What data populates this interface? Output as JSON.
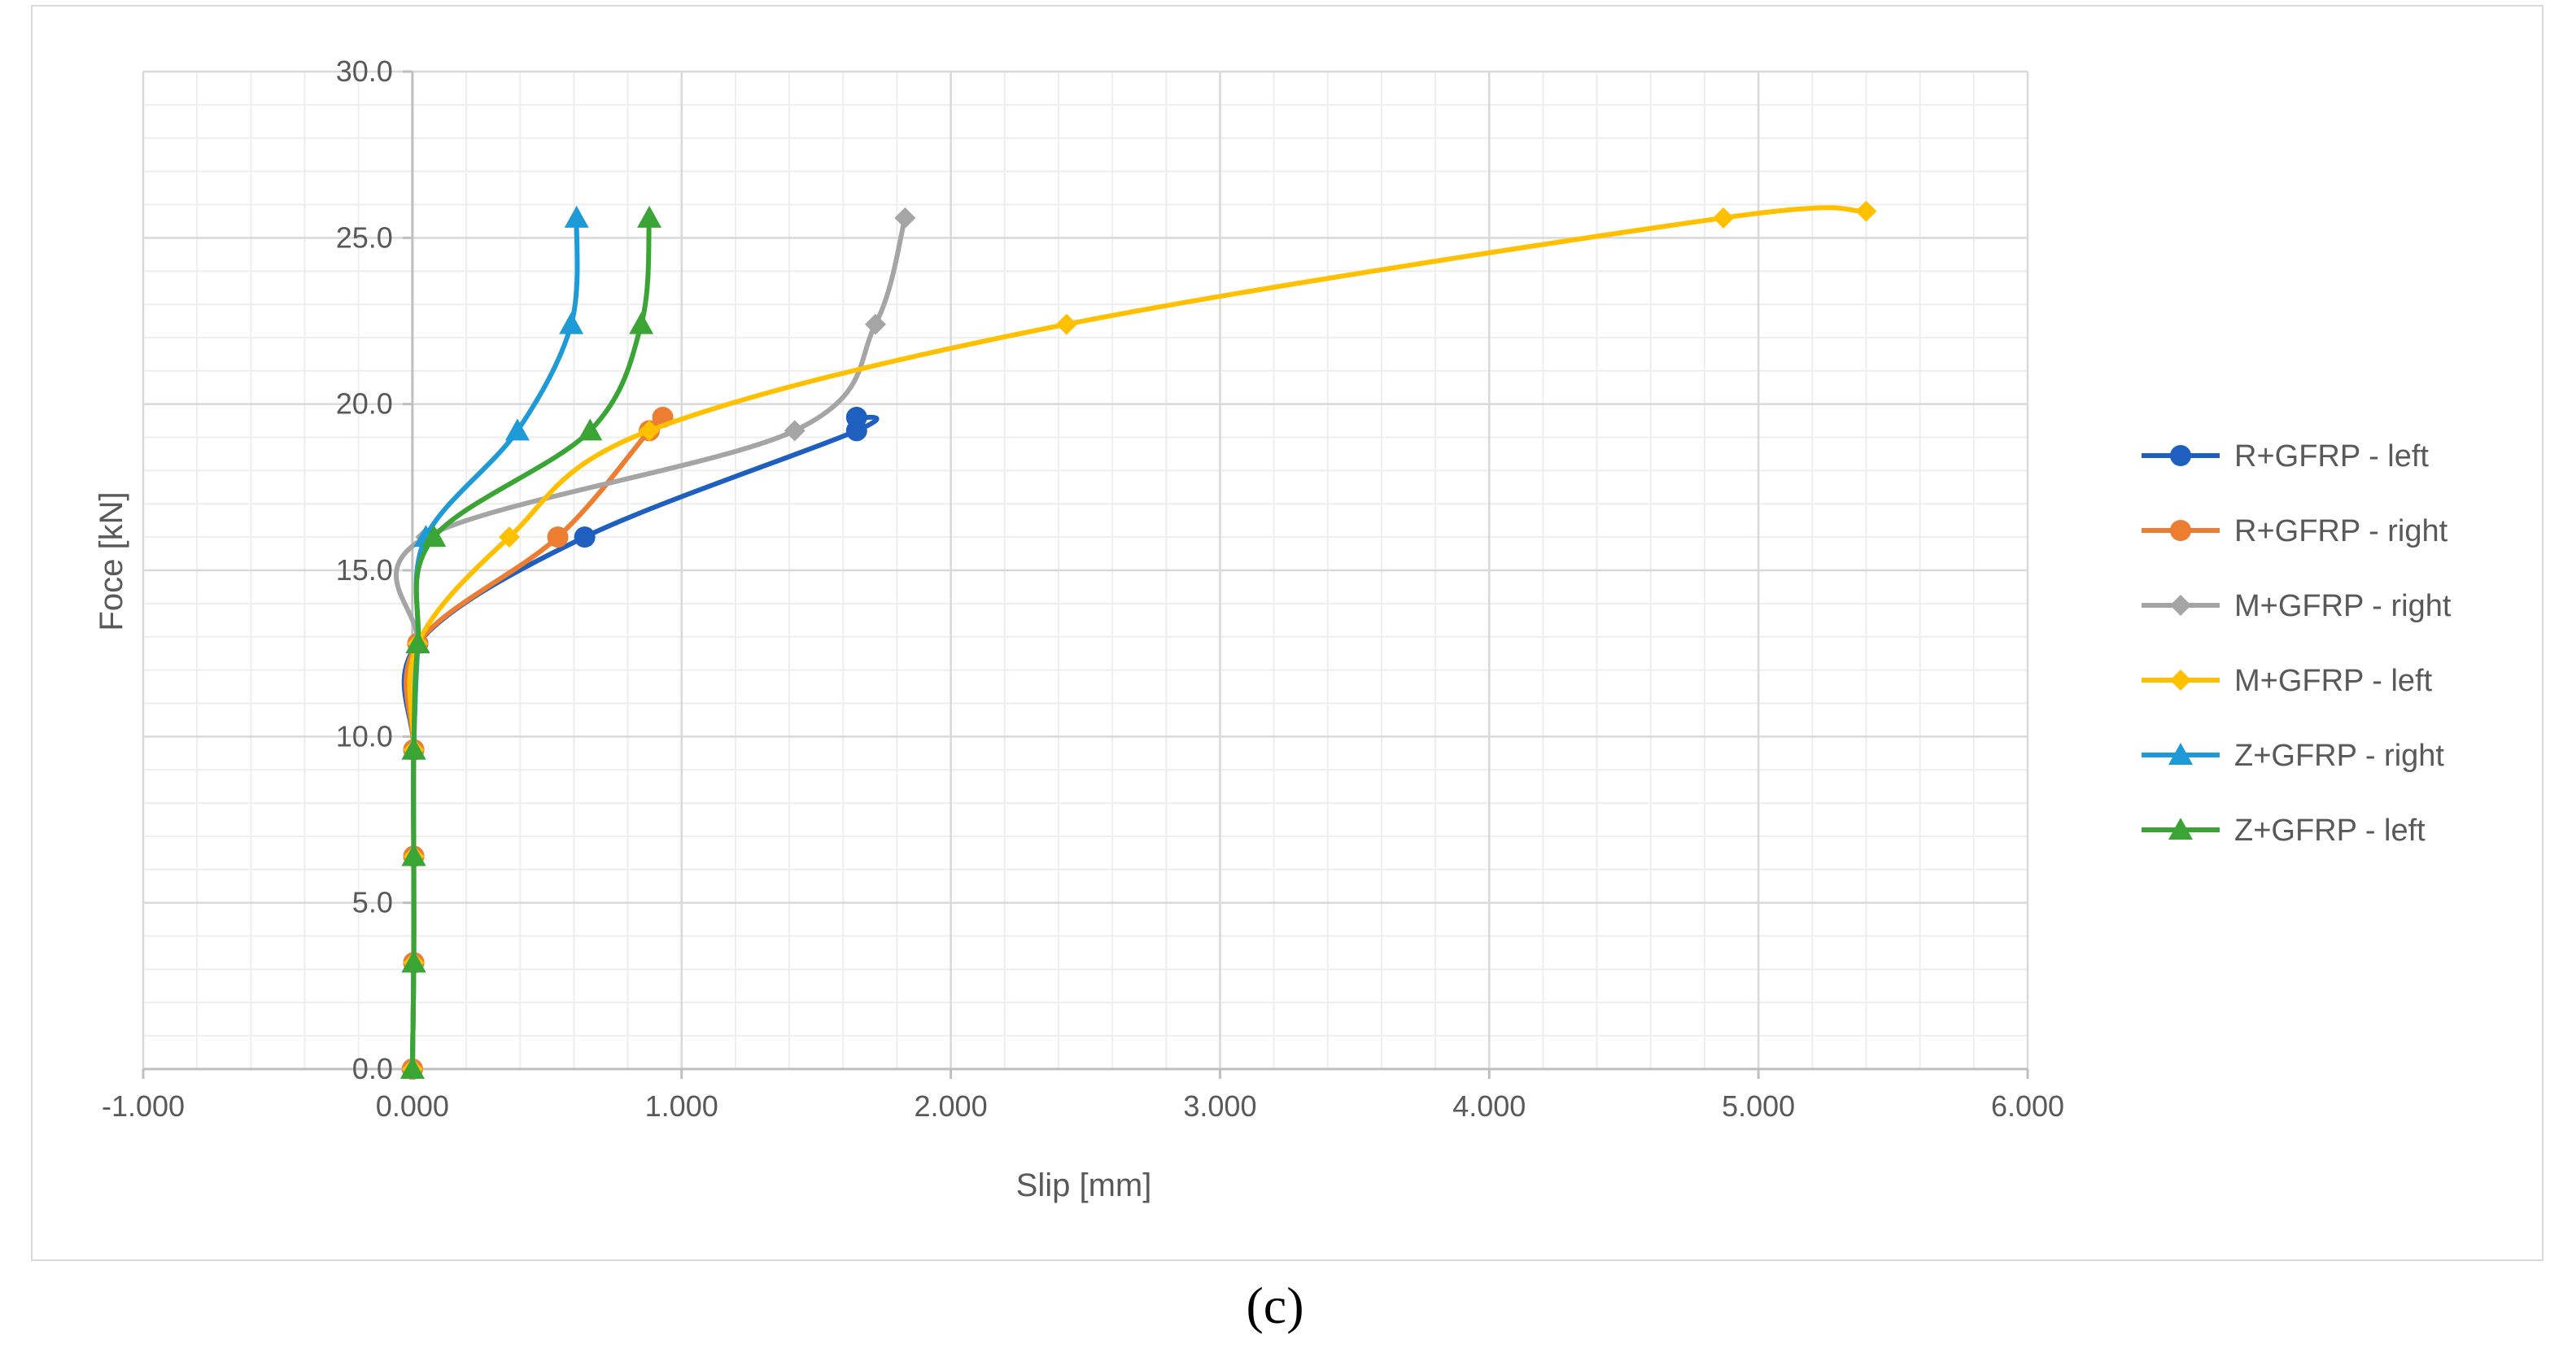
{
  "caption": "(c)",
  "chart_data": {
    "type": "scatter",
    "title": "",
    "xlabel": "Slip [mm]",
    "ylabel": "Foce [kN]",
    "xlim": [
      -1,
      6
    ],
    "ylim": [
      0,
      30
    ],
    "x_major_step": 1,
    "x_minor_step": 0.2,
    "y_major_step": 5,
    "y_minor_step": 1,
    "x_tick_labels": [
      "-1.000",
      "0.000",
      "1.000",
      "2.000",
      "3.000",
      "4.000",
      "5.000",
      "6.000"
    ],
    "y_tick_labels": [
      "0.0",
      "5.0",
      "10.0",
      "15.0",
      "20.0",
      "25.0",
      "30.0"
    ],
    "grid": true,
    "smooth_lines": true,
    "legend_position": "right",
    "series": [
      {
        "name": "R+GFRP - left",
        "color": "#1f5fbf",
        "marker": "circle",
        "points": [
          [
            0,
            0
          ],
          [
            0.005,
            3.2
          ],
          [
            0.005,
            6.4
          ],
          [
            0.005,
            9.6
          ],
          [
            0.02,
            12.8
          ],
          [
            0.64,
            16
          ],
          [
            1.65,
            19.2
          ],
          [
            1.65,
            19.6
          ]
        ]
      },
      {
        "name": "R+GFRP - right",
        "color": "#ed7d31",
        "marker": "circle",
        "points": [
          [
            0,
            0
          ],
          [
            0.005,
            3.2
          ],
          [
            0.005,
            6.4
          ],
          [
            0.005,
            9.6
          ],
          [
            0.02,
            12.8
          ],
          [
            0.54,
            16
          ],
          [
            0.88,
            19.2
          ],
          [
            0.93,
            19.6
          ]
        ]
      },
      {
        "name": "M+GFRP - right",
        "color": "#a5a5a5",
        "marker": "diamond",
        "points": [
          [
            0,
            0
          ],
          [
            0.005,
            3.2
          ],
          [
            0.005,
            6.4
          ],
          [
            0.005,
            9.6
          ],
          [
            0.02,
            12.8
          ],
          [
            0.05,
            16
          ],
          [
            1.42,
            19.2
          ],
          [
            1.72,
            22.4
          ],
          [
            1.83,
            25.6
          ]
        ]
      },
      {
        "name": "M+GFRP - left",
        "color": "#ffc000",
        "marker": "diamond",
        "points": [
          [
            0,
            0
          ],
          [
            0.005,
            3.2
          ],
          [
            0.005,
            6.4
          ],
          [
            0.005,
            9.6
          ],
          [
            0.02,
            12.8
          ],
          [
            0.36,
            16
          ],
          [
            0.88,
            19.2
          ],
          [
            2.43,
            22.4
          ],
          [
            4.87,
            25.6
          ],
          [
            5.4,
            25.8
          ]
        ]
      },
      {
        "name": "Z+GFRP - right",
        "color": "#1e9bd7",
        "marker": "triangle",
        "points": [
          [
            0,
            0
          ],
          [
            0.005,
            3.2
          ],
          [
            0.005,
            6.4
          ],
          [
            0.005,
            9.6
          ],
          [
            0.02,
            12.8
          ],
          [
            0.05,
            16
          ],
          [
            0.39,
            19.2
          ],
          [
            0.59,
            22.4
          ],
          [
            0.61,
            25.6
          ]
        ]
      },
      {
        "name": "Z+GFRP - left",
        "color": "#3aa535",
        "marker": "triangle",
        "points": [
          [
            0,
            0
          ],
          [
            0.005,
            3.2
          ],
          [
            0.005,
            6.4
          ],
          [
            0.005,
            9.6
          ],
          [
            0.02,
            12.8
          ],
          [
            0.08,
            16
          ],
          [
            0.66,
            19.2
          ],
          [
            0.85,
            22.4
          ],
          [
            0.88,
            25.6
          ]
        ]
      }
    ]
  }
}
